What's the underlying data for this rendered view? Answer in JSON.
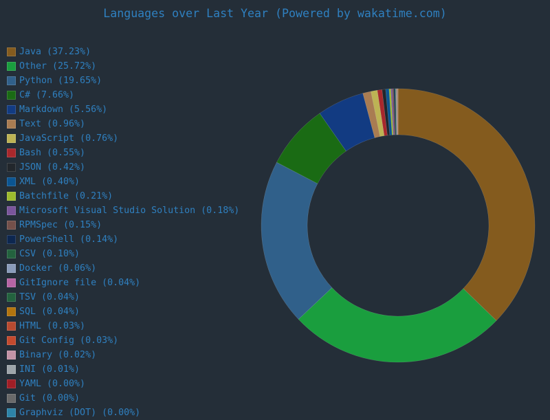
{
  "chart_data": {
    "type": "pie",
    "style": "donut",
    "title": "Languages over Last Year (Powered by wakatime.com)",
    "legend_position": "left",
    "slices": [
      {
        "label": "Java (37.23%)",
        "name": "Java",
        "value": 37.23,
        "color": "#845b1e"
      },
      {
        "label": "Other (25.72%)",
        "name": "Other",
        "value": 25.72,
        "color": "#1a9e3e"
      },
      {
        "label": "Python (19.65%)",
        "name": "Python",
        "value": 19.65,
        "color": "#30608a"
      },
      {
        "label": "C# (7.66%)",
        "name": "C#",
        "value": 7.66,
        "color": "#1a6b14"
      },
      {
        "label": "Markdown (5.56%)",
        "name": "Markdown",
        "value": 5.56,
        "color": "#123b82"
      },
      {
        "label": "Text (0.96%)",
        "name": "Text",
        "value": 0.96,
        "color": "#a97c52"
      },
      {
        "label": "JavaScript (0.76%)",
        "name": "JavaScript",
        "value": 0.76,
        "color": "#bdb354"
      },
      {
        "label": "Bash (0.55%)",
        "name": "Bash",
        "value": 0.55,
        "color": "#a8282c"
      },
      {
        "label": "JSON (0.42%)",
        "name": "JSON",
        "value": 0.42,
        "color": "#22272c"
      },
      {
        "label": "XML (0.40%)",
        "name": "XML",
        "value": 0.4,
        "color": "#0b5592"
      },
      {
        "label": "Batchfile (0.21%)",
        "name": "Batchfile",
        "value": 0.21,
        "color": "#9dba2e"
      },
      {
        "label": "Microsoft Visual Studio Solution (0.18%)",
        "name": "Microsoft Visual Studio Solution",
        "value": 0.18,
        "color": "#7a559b"
      },
      {
        "label": "RPMSpec (0.15%)",
        "name": "RPMSpec",
        "value": 0.15,
        "color": "#74504a"
      },
      {
        "label": "PowerShell (0.14%)",
        "name": "PowerShell",
        "value": 0.14,
        "color": "#0d2750"
      },
      {
        "label": "CSV (0.10%)",
        "name": "CSV",
        "value": 0.1,
        "color": "#23623e"
      },
      {
        "label": "Docker (0.06%)",
        "name": "Docker",
        "value": 0.06,
        "color": "#8a9cba"
      },
      {
        "label": "GitIgnore file (0.04%)",
        "name": "GitIgnore file",
        "value": 0.04,
        "color": "#b664a4"
      },
      {
        "label": "TSV (0.04%)",
        "name": "TSV",
        "value": 0.04,
        "color": "#23623e"
      },
      {
        "label": "SQL (0.04%)",
        "name": "SQL",
        "value": 0.04,
        "color": "#b3740e"
      },
      {
        "label": "HTML (0.03%)",
        "name": "HTML",
        "value": 0.03,
        "color": "#b84a30"
      },
      {
        "label": "Git Config (0.03%)",
        "name": "Git Config",
        "value": 0.03,
        "color": "#c44a2e"
      },
      {
        "label": "Binary (0.02%)",
        "name": "Binary",
        "value": 0.02,
        "color": "#c393a6"
      },
      {
        "label": "INI (0.01%)",
        "name": "INI",
        "value": 0.01,
        "color": "#9ea5aa"
      },
      {
        "label": "YAML (0.00%)",
        "name": "YAML",
        "value": 0.0,
        "color": "#a01e26"
      },
      {
        "label": "Git (0.00%)",
        "name": "Git",
        "value": 0.0,
        "color": "#6a6a6a"
      },
      {
        "label": "Graphviz (DOT) (0.00%)",
        "name": "Graphviz (DOT)",
        "value": 0.0,
        "color": "#2d84a8"
      }
    ]
  }
}
